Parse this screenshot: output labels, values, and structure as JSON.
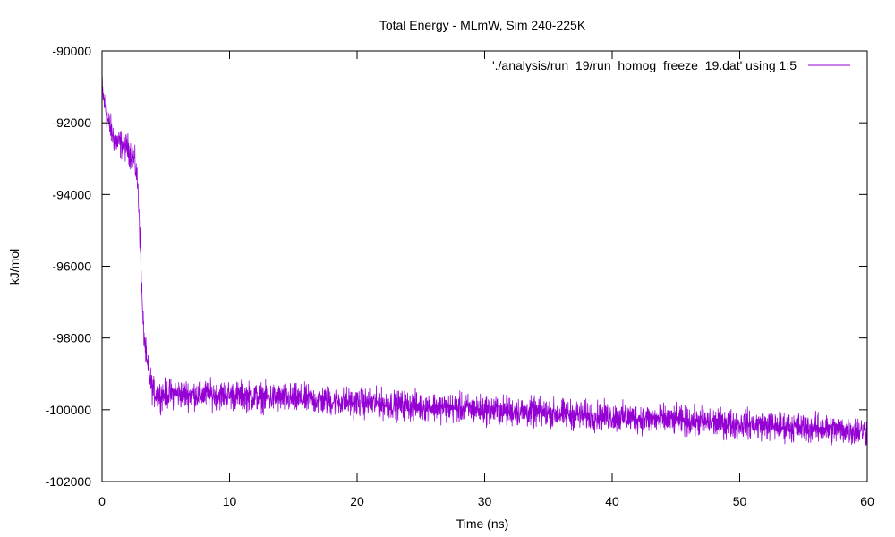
{
  "chart_data": {
    "type": "line",
    "title": "Total Energy - MLmW, Sim 240-225K",
    "xlabel": "Time (ns)",
    "ylabel": "kJ/mol",
    "xlim": [
      0,
      60
    ],
    "ylim": [
      -102000,
      -90000
    ],
    "x_ticks": [
      0,
      10,
      20,
      30,
      40,
      50,
      60
    ],
    "y_ticks": [
      -90000,
      -92000,
      -94000,
      -96000,
      -98000,
      -100000,
      -102000
    ],
    "x_tick_labels": [
      "0",
      "10",
      "20",
      "30",
      "40",
      "50",
      "60"
    ],
    "y_tick_labels": [
      "-90000",
      "-92000",
      "-94000",
      "-96000",
      "-98000",
      "-100000",
      "-102000"
    ],
    "grid": false,
    "legend_position": "top-right",
    "series": [
      {
        "name": "'./analysis/run_19/run_homog_freeze_19.dat' using 1:5",
        "color": "#9400d3",
        "trend": {
          "x": [
            0,
            0.1,
            0.5,
            1,
            1.5,
            2,
            2.5,
            2.7,
            2.8,
            2.9,
            3.0,
            3.2,
            3.5,
            3.8,
            4.0,
            4.5,
            5,
            8,
            10,
            15,
            20,
            25,
            30,
            35,
            40,
            45,
            50,
            55,
            60
          ],
          "y": [
            -91000,
            -91300,
            -92000,
            -92500,
            -92600,
            -92700,
            -93000,
            -93400,
            -93800,
            -94400,
            -95500,
            -97500,
            -98700,
            -99200,
            -99500,
            -99600,
            -99550,
            -99580,
            -99600,
            -99700,
            -99800,
            -99900,
            -100000,
            -100100,
            -100200,
            -100300,
            -100400,
            -100500,
            -100600
          ]
        },
        "noise_amplitude": 300
      }
    ]
  }
}
